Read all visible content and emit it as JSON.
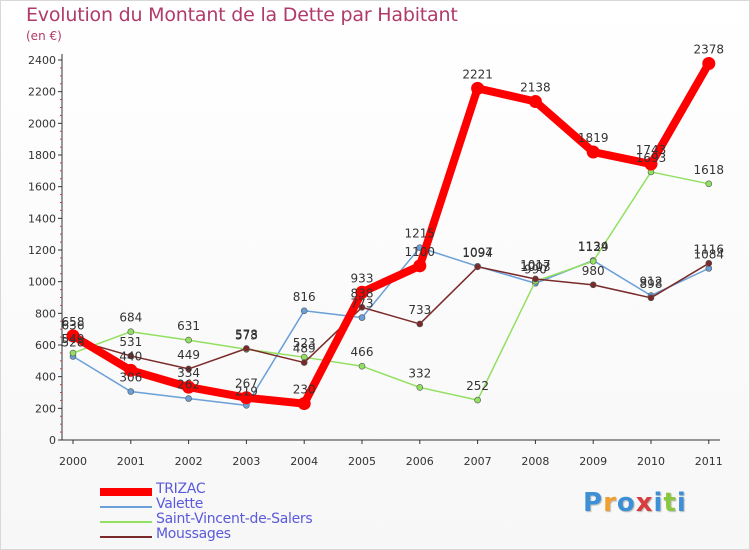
{
  "chart_data": {
    "type": "line",
    "title": "Evolution du Montant de la Dette par Habitant",
    "subtitle": "(en €)",
    "xlabel": "",
    "ylabel": "",
    "x": [
      "2000",
      "2001",
      "2002",
      "2003",
      "2004",
      "2005",
      "2006",
      "2007",
      "2008",
      "2009",
      "2010",
      "2011"
    ],
    "ylim": [
      0,
      2400
    ],
    "yticks": [
      0,
      200,
      400,
      600,
      800,
      1000,
      1200,
      1400,
      1600,
      1800,
      2000,
      2200,
      2400
    ],
    "grid": false,
    "legend": "bottom-left",
    "series": [
      {
        "name": "TRIZAC",
        "color": "#ff0000",
        "values": [
          658,
          440,
          334,
          267,
          230,
          933,
          1100,
          2221,
          2138,
          1819,
          1743,
          2378
        ]
      },
      {
        "name": "Valette",
        "color": "#6a9fd8",
        "values": [
          528,
          306,
          262,
          219,
          816,
          773,
          1215,
          1097,
          990,
          1134,
          912,
          1084
        ]
      },
      {
        "name": "Saint-Vincent-de-Salers",
        "color": "#92e060",
        "values": [
          549,
          684,
          631,
          573,
          523,
          466,
          332,
          252,
          1003,
          1129,
          1693,
          1618
        ]
      },
      {
        "name": "Moussages",
        "color": "#7b2a2a",
        "values": [
          636,
          531,
          449,
          578,
          489,
          838,
          733,
          1094,
          1017,
          980,
          898,
          1116
        ]
      }
    ],
    "point_labels": {
      "2000": [
        "658",
        "528",
        "636",
        "549"
      ],
      "2001": [
        "531",
        "440",
        "306",
        "684"
      ],
      "2002": [
        "631",
        "449",
        "334",
        "262"
      ],
      "2003": [
        "573",
        "578",
        "267",
        "219"
      ],
      "2004": [
        "816",
        "523",
        "489",
        "230"
      ],
      "2005": [
        "933",
        "838",
        "773",
        "466"
      ],
      "2006": [
        "1215",
        "1100",
        "733",
        "332"
      ],
      "2007": [
        "2221",
        "1097",
        "1094",
        "252"
      ],
      "2008": [
        "2138",
        "1017",
        "1003",
        "990"
      ],
      "2009": [
        "1819",
        "1134",
        "1129",
        "980"
      ],
      "2010": [
        "1743",
        "1693",
        "912",
        "898"
      ],
      "2011": [
        "2378",
        "1618",
        "1116",
        "1084"
      ]
    }
  },
  "brand": {
    "letters": [
      "P",
      "r",
      "o",
      "x",
      "i",
      "t",
      "i"
    ],
    "colors": [
      "#3d8fd6",
      "#f0a030",
      "#3d8fd6",
      "#d83c3c",
      "#3d8fd6",
      "#8ac640",
      "#3d8fd6"
    ]
  }
}
